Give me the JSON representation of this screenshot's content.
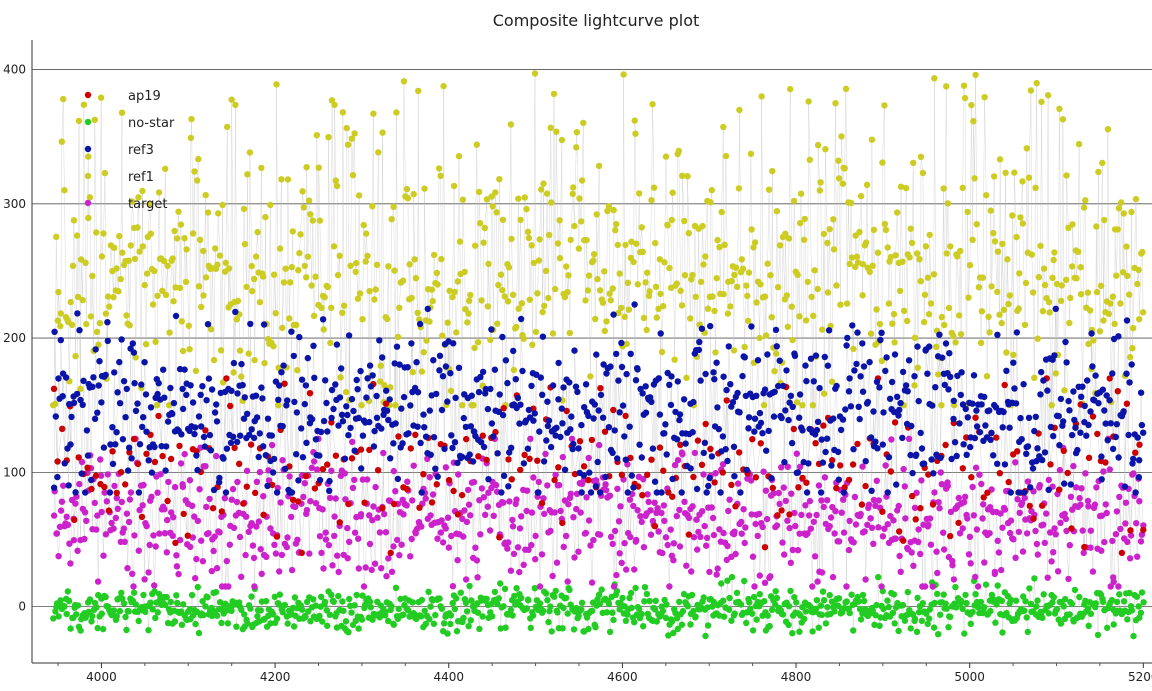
{
  "chart_data": {
    "type": "scatter",
    "title": "Composite lightcurve plot",
    "xlabel": "",
    "ylabel": "",
    "xlim": [
      3920,
      5210
    ],
    "ylim": [
      -42,
      422
    ],
    "x_ticks": [
      4000,
      4200,
      4400,
      4600,
      4800,
      5000,
      5200
    ],
    "y_ticks": [
      0,
      100,
      200,
      300,
      400
    ],
    "grid": "horizontal",
    "legend": "top-left",
    "connected_points": true,
    "series": [
      {
        "name": "ap19",
        "color": "#cc0000",
        "x_range": [
          3945,
          5200
        ],
        "band": [
          40,
          170
        ],
        "center": 105,
        "spread": 28,
        "count": 260
      },
      {
        "name": "no-star",
        "color": "#22cc22",
        "x_range": [
          3945,
          5200
        ],
        "band": [
          -22,
          22
        ],
        "center": -2,
        "spread": 8,
        "count": 900
      },
      {
        "name": "ref3",
        "color": "#0a14a8",
        "x_range": [
          3945,
          5200
        ],
        "band": [
          85,
          225
        ],
        "center": 145,
        "spread": 32,
        "count": 900
      },
      {
        "name": "ref1",
        "color": "#cccc22",
        "x_range": [
          3945,
          5200
        ],
        "band": [
          150,
          405
        ],
        "center": 245,
        "spread": 45,
        "count": 900
      },
      {
        "name": "target",
        "color": "#cc22cc",
        "x_range": [
          3945,
          5200
        ],
        "band": [
          15,
          125
        ],
        "center": 65,
        "spread": 25,
        "count": 900
      }
    ]
  }
}
